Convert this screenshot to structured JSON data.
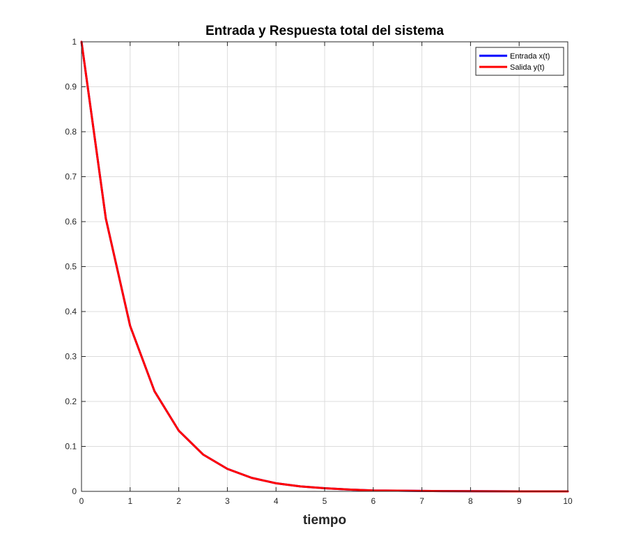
{
  "chart_data": {
    "type": "line",
    "title": "Entrada y Respuesta total del sistema",
    "xlabel": "tiempo",
    "ylabel": "",
    "xlim": [
      0,
      10
    ],
    "ylim": [
      0,
      1
    ],
    "x_ticks": [
      0,
      1,
      2,
      3,
      4,
      5,
      6,
      7,
      8,
      9,
      10
    ],
    "x_tick_labels": [
      "0",
      "1",
      "2",
      "3",
      "4",
      "5",
      "6",
      "7",
      "8",
      "9",
      "10"
    ],
    "y_ticks": [
      0,
      0.1,
      0.2,
      0.3,
      0.4,
      0.5,
      0.6,
      0.7,
      0.8,
      0.9,
      1
    ],
    "y_tick_labels": [
      "0",
      "0.1",
      "0.2",
      "0.3",
      "0.4",
      "0.5",
      "0.6",
      "0.7",
      "0.8",
      "0.9",
      "1"
    ],
    "grid": true,
    "legend_position": "top-right",
    "series": [
      {
        "name": "Entrada x(t)",
        "color": "#0000ff",
        "x": [
          0,
          0.5,
          1,
          1.5,
          2,
          2.5,
          3,
          3.5,
          4,
          4.5,
          5,
          5.5,
          6,
          6.5,
          7,
          7.5,
          8,
          8.5,
          9,
          9.5,
          10
        ],
        "y": [
          1,
          0.607,
          0.368,
          0.223,
          0.135,
          0.082,
          0.05,
          0.03,
          0.018,
          0.011,
          0.007,
          0.004,
          0.002,
          0.0015,
          0.0009,
          0.0006,
          0.0003,
          0.0002,
          0.0001,
          0.0001,
          0
        ]
      },
      {
        "name": "Salida y(t)",
        "color": "#ff0000",
        "x": [
          0,
          0.5,
          1,
          1.5,
          2,
          2.5,
          3,
          3.5,
          4,
          4.5,
          5,
          5.5,
          6,
          6.5,
          7,
          7.5,
          8,
          8.5,
          9,
          9.5,
          10
        ],
        "y": [
          1,
          0.607,
          0.368,
          0.223,
          0.135,
          0.082,
          0.05,
          0.03,
          0.018,
          0.011,
          0.007,
          0.004,
          0.002,
          0.0015,
          0.0009,
          0.0006,
          0.0003,
          0.0002,
          0.0001,
          0.0001,
          0
        ]
      }
    ]
  }
}
